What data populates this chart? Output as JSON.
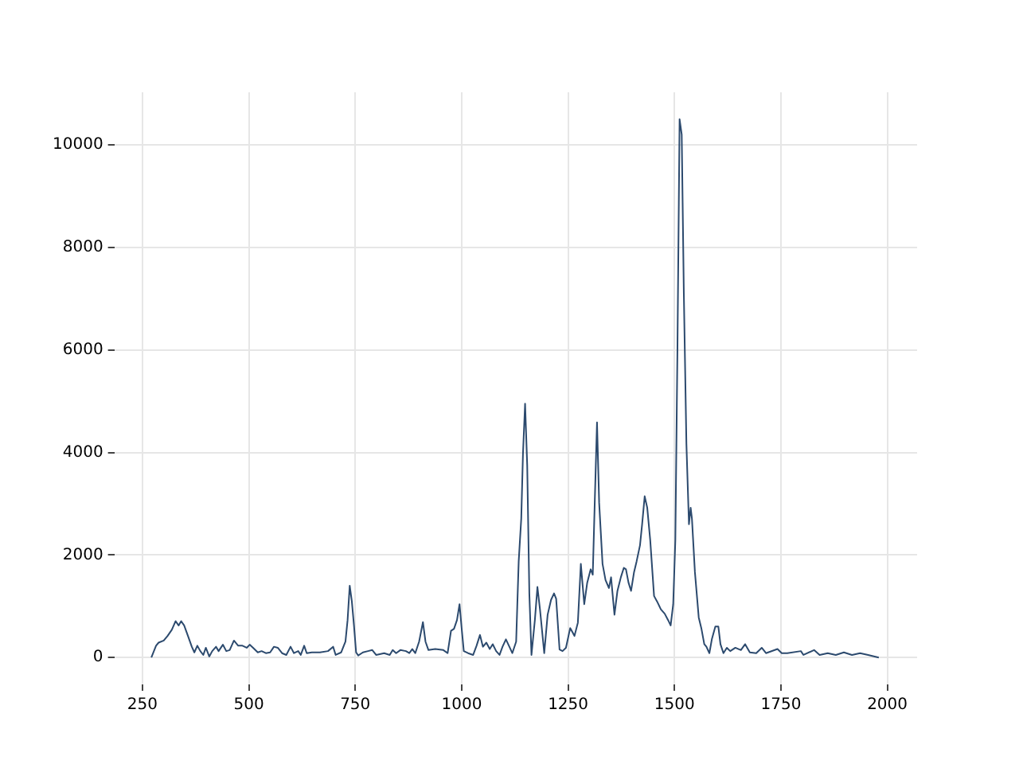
{
  "chart_data": {
    "type": "line",
    "x": [
      271,
      282,
      288,
      300,
      309,
      319,
      328,
      335,
      341,
      348,
      357,
      366,
      372,
      379,
      386,
      393,
      399,
      407,
      414,
      423,
      429,
      439,
      447,
      455,
      465,
      475,
      485,
      495,
      502,
      510,
      521,
      530,
      540,
      550,
      559,
      568,
      578,
      588,
      598,
      606,
      616,
      622,
      630,
      636,
      648,
      667,
      686,
      698,
      704,
      717,
      727,
      732,
      737,
      742,
      747,
      752,
      757,
      768,
      780,
      790,
      799,
      818,
      831,
      838,
      846,
      856,
      869,
      877,
      884,
      891,
      900,
      909,
      915,
      922,
      938,
      957,
      967,
      975,
      982,
      989,
      995,
      1000,
      1005,
      1015,
      1027,
      1035,
      1043,
      1050,
      1058,
      1066,
      1073,
      1081,
      1089,
      1096,
      1104,
      1111,
      1119,
      1128,
      1134,
      1140,
      1144,
      1149,
      1154,
      1159,
      1164,
      1172,
      1178,
      1184,
      1194,
      1202,
      1210,
      1217,
      1222,
      1230,
      1237,
      1245,
      1255,
      1260,
      1265,
      1273,
      1280,
      1288,
      1295,
      1303,
      1308,
      1313,
      1318,
      1323,
      1331,
      1338,
      1346,
      1351,
      1359,
      1366,
      1374,
      1381,
      1386,
      1392,
      1398,
      1405,
      1411,
      1419,
      1424,
      1430,
      1436,
      1443,
      1452,
      1459,
      1468,
      1477,
      1485,
      1491,
      1497,
      1502,
      1507,
      1512,
      1517,
      1522,
      1528,
      1534,
      1538,
      1541,
      1548,
      1557,
      1563,
      1570,
      1575,
      1582,
      1588,
      1596,
      1603,
      1608,
      1615,
      1623,
      1631,
      1643,
      1656,
      1666,
      1677,
      1692,
      1705,
      1715,
      1742,
      1752,
      1765,
      1797,
      1803,
      1828,
      1841,
      1860,
      1879,
      1898,
      1917,
      1936,
      1955,
      1980
    ],
    "values": [
      0,
      230,
      290,
      330,
      420,
      540,
      710,
      625,
      710,
      625,
      420,
      210,
      100,
      230,
      125,
      50,
      190,
      20,
      125,
      210,
      125,
      250,
      125,
      145,
      330,
      230,
      230,
      190,
      250,
      190,
      100,
      125,
      85,
      100,
      210,
      190,
      85,
      50,
      210,
      85,
      125,
      50,
      230,
      85,
      100,
      100,
      125,
      210,
      50,
      100,
      310,
      730,
      1400,
      1095,
      625,
      100,
      40,
      100,
      125,
      145,
      50,
      85,
      50,
      145,
      85,
      145,
      125,
      85,
      165,
      85,
      310,
      690,
      310,
      145,
      165,
      145,
      85,
      520,
      560,
      730,
      1040,
      570,
      125,
      85,
      50,
      230,
      440,
      210,
      290,
      165,
      260,
      125,
      50,
      210,
      355,
      230,
      85,
      310,
      1875,
      2710,
      3960,
      4950,
      3750,
      1250,
      50,
      730,
      1375,
      940,
      85,
      835,
      1125,
      1250,
      1145,
      155,
      125,
      190,
      575,
      500,
      420,
      680,
      1825,
      1040,
      1460,
      1720,
      1615,
      3125,
      4585,
      3020,
      1825,
      1510,
      1355,
      1565,
      835,
      1300,
      1565,
      1750,
      1720,
      1460,
      1300,
      1665,
      1875,
      2190,
      2600,
      3145,
      2920,
      2290,
      1200,
      1095,
      940,
      855,
      730,
      625,
      1040,
      2290,
      6040,
      10500,
      10200,
      7085,
      4170,
      2600,
      2920,
      2710,
      1665,
      780,
      575,
      260,
      210,
      85,
      365,
      605,
      605,
      260,
      85,
      190,
      125,
      190,
      145,
      260,
      100,
      85,
      190,
      85,
      165,
      85,
      85,
      125,
      50,
      145,
      50,
      85,
      50,
      100,
      50,
      85,
      50,
      0
    ],
    "color": "#2c4a6e",
    "xlim": [
      184,
      2070
    ],
    "ylim": [
      -525,
      11025
    ],
    "xticks": [
      250,
      500,
      750,
      1000,
      1250,
      1500,
      1750,
      2000
    ],
    "yticks": [
      0,
      2000,
      4000,
      6000,
      8000,
      10000
    ],
    "grid": true
  }
}
